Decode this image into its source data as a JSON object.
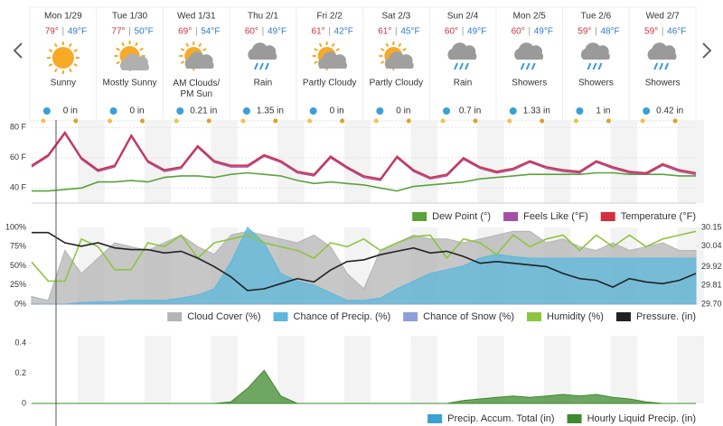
{
  "days": [
    {
      "date": "Mon 1/29",
      "high": "79°",
      "low": "49°F",
      "condition": "Sunny",
      "precip": "0 in"
    },
    {
      "date": "Tue 1/30",
      "high": "77°",
      "low": "50°F",
      "condition": "Mostly Sunny",
      "precip": "0 in"
    },
    {
      "date": "Wed 1/31",
      "high": "69°",
      "low": "54°F",
      "condition": "AM Clouds/PM Sun",
      "precip": "0.21 in"
    },
    {
      "date": "Thu 2/1",
      "high": "60°",
      "low": "49°F",
      "condition": "Rain",
      "precip": "1.35 in"
    },
    {
      "date": "Fri 2/2",
      "high": "61°",
      "low": "42°F",
      "condition": "Partly Cloudy",
      "precip": "0 in"
    },
    {
      "date": "Sat 2/3",
      "high": "61°",
      "low": "45°F",
      "condition": "Partly Cloudy",
      "precip": "0 in"
    },
    {
      "date": "Sun 2/4",
      "high": "60°",
      "low": "49°F",
      "condition": "Rain",
      "precip": "0.7 in"
    },
    {
      "date": "Mon 2/5",
      "high": "60°",
      "low": "49°F",
      "condition": "Showers",
      "precip": "1.33 in"
    },
    {
      "date": "Tue 2/6",
      "high": "59°",
      "low": "48°F",
      "condition": "Showers",
      "precip": "1 in"
    },
    {
      "date": "Wed 2/7",
      "high": "59°",
      "low": "46°F",
      "condition": "Showers",
      "precip": "0.42 in"
    }
  ],
  "chart_data": [
    {
      "type": "line",
      "ylim": [
        30,
        85
      ],
      "yticks": [
        {
          "value": 80,
          "label": "80 F"
        },
        {
          "value": 60,
          "label": "60 F"
        },
        {
          "value": 40,
          "label": "40 F"
        }
      ],
      "grid": true,
      "series": [
        {
          "name": "Dew Point (°)",
          "color": "#5ca23c",
          "values": [
            38,
            38,
            39,
            40,
            44,
            44,
            45,
            44,
            47,
            48,
            48,
            47,
            49,
            50,
            49,
            48,
            45,
            43,
            44,
            43,
            42,
            40,
            38,
            41,
            42,
            43,
            44,
            46,
            47,
            48,
            49,
            49,
            49,
            49,
            50,
            50,
            49,
            49,
            49,
            48,
            48
          ]
        },
        {
          "name": "Feels Like (°F)",
          "color": "#a550a7",
          "values": [
            54,
            61,
            76,
            59,
            51,
            54,
            74,
            57,
            51,
            53,
            67,
            57,
            54,
            54,
            61,
            57,
            50,
            48,
            60,
            53,
            47,
            45,
            60,
            51,
            46,
            48,
            59,
            53,
            50,
            52,
            57,
            53,
            51,
            50,
            57,
            53,
            50,
            49,
            55,
            51,
            49
          ]
        },
        {
          "name": "Temperature (°F)",
          "color": "#d32f3c",
          "values": [
            55,
            62,
            77,
            60,
            52,
            55,
            75,
            58,
            52,
            54,
            68,
            58,
            55,
            55,
            62,
            58,
            51,
            49,
            61,
            54,
            48,
            46,
            61,
            52,
            47,
            49,
            60,
            54,
            51,
            53,
            58,
            54,
            52,
            51,
            58,
            54,
            51,
            50,
            56,
            52,
            50
          ]
        }
      ]
    },
    {
      "type": "line",
      "ylim": [
        0,
        100
      ],
      "yticks": [
        {
          "value": 100,
          "label": "100%"
        },
        {
          "value": 75,
          "label": "75%"
        },
        {
          "value": 50,
          "label": "50%"
        },
        {
          "value": 25,
          "label": "25%"
        },
        {
          "value": 0,
          "label": "0%"
        }
      ],
      "y2lim": [
        29.7,
        30.15
      ],
      "y2ticks": [
        30.15,
        30.04,
        29.92,
        29.81,
        {
          "value": 29.7,
          "label": "29.70"
        }
      ],
      "series": [
        {
          "name": "Cloud Cover (%)",
          "color": "#b4b4b4",
          "area": true,
          "values": [
            10,
            5,
            70,
            40,
            60,
            80,
            75,
            70,
            80,
            90,
            75,
            65,
            90,
            95,
            90,
            85,
            80,
            90,
            75,
            40,
            20,
            70,
            80,
            90,
            85,
            85,
            80,
            85,
            90,
            95,
            95,
            80,
            85,
            75,
            70,
            80,
            70,
            75,
            80,
            70,
            70
          ]
        },
        {
          "name": "Chance of Precip. (%)",
          "color": "#5bb8dc",
          "area": true,
          "values": [
            0,
            0,
            0,
            2,
            3,
            3,
            5,
            5,
            5,
            8,
            12,
            20,
            55,
            100,
            80,
            40,
            30,
            25,
            15,
            5,
            5,
            8,
            20,
            30,
            40,
            45,
            50,
            60,
            65,
            62,
            60,
            60,
            60,
            60,
            60,
            60,
            60,
            60,
            60,
            60,
            60
          ]
        },
        {
          "name": "Chance of Snow (%)",
          "color": "#8c9fd8",
          "area": true,
          "values": [
            0,
            0,
            0,
            0,
            0,
            0,
            0,
            0,
            0,
            0,
            0,
            0,
            0,
            0,
            0,
            0,
            0,
            0,
            0,
            0,
            0,
            0,
            0,
            0,
            0,
            0,
            0,
            0,
            0,
            0,
            0,
            0,
            0,
            0,
            0,
            0,
            0,
            0,
            0,
            0,
            0
          ]
        },
        {
          "name": "Humidity (%)",
          "color": "#8cc63f",
          "values": [
            55,
            30,
            30,
            85,
            75,
            45,
            45,
            80,
            75,
            90,
            60,
            80,
            85,
            90,
            80,
            75,
            70,
            60,
            80,
            75,
            85,
            70,
            80,
            88,
            90,
            60,
            85,
            80,
            65,
            90,
            75,
            85,
            90,
            70,
            90,
            75,
            90,
            75,
            85,
            90,
            95
          ]
        },
        {
          "name": "Pressure. (in)",
          "color": "#222222",
          "axis": "y2",
          "values": [
            30.12,
            30.12,
            30.06,
            30.04,
            30.06,
            30.03,
            30.02,
            30.02,
            30.0,
            30.01,
            29.97,
            29.92,
            29.86,
            29.78,
            29.79,
            29.82,
            29.85,
            29.83,
            29.9,
            29.95,
            29.96,
            29.99,
            30.01,
            30.03,
            30.0,
            30.01,
            29.98,
            29.94,
            29.95,
            29.94,
            29.93,
            29.92,
            29.88,
            29.85,
            29.84,
            29.8,
            29.85,
            29.83,
            29.82,
            29.84,
            29.88
          ]
        }
      ]
    },
    {
      "type": "line",
      "ylim": [
        0,
        0.45
      ],
      "yticks": [
        0.4,
        0.2,
        0
      ],
      "series": [
        {
          "name": "Precip. Accum. Total (in)",
          "color": "#3aa0d0"
        },
        {
          "name": "Hourly Liquid Precip. (in)",
          "color": "#3f8a2e",
          "area": true,
          "values": [
            0,
            0,
            0,
            0,
            0,
            0,
            0,
            0,
            0,
            0,
            0,
            0,
            0.01,
            0.1,
            0.22,
            0.05,
            0,
            0,
            0,
            0,
            0,
            0,
            0,
            0,
            0,
            0,
            0.02,
            0.03,
            0.04,
            0.05,
            0.04,
            0.05,
            0.06,
            0.05,
            0.06,
            0.04,
            0.03,
            0.01,
            0,
            0,
            0
          ]
        }
      ]
    }
  ]
}
